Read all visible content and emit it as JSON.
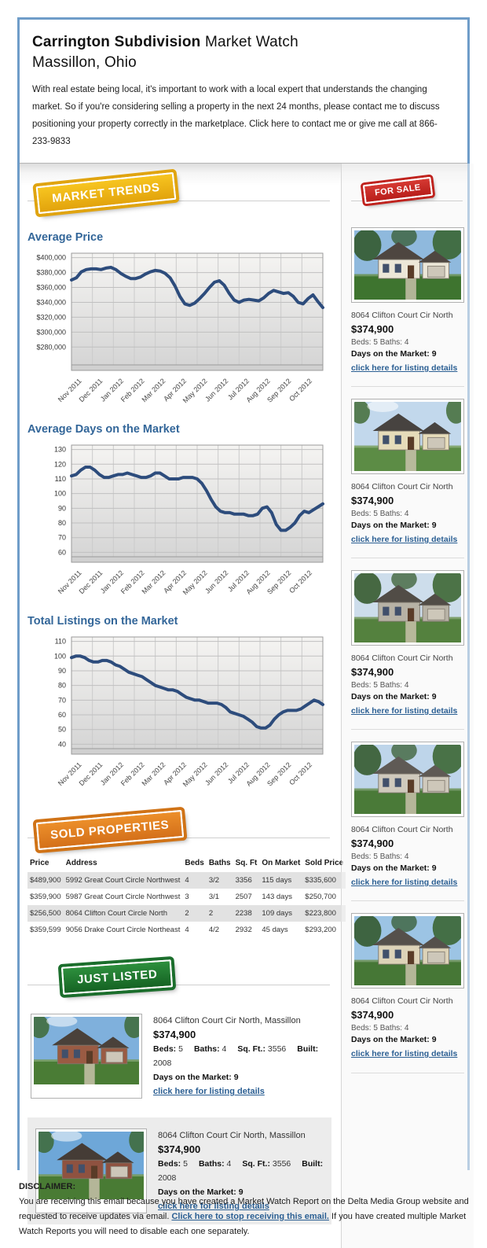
{
  "header": {
    "title_bold": "Carrington Subdivision",
    "title_rest": "Market Watch",
    "subtitle": "Massillon, Ohio",
    "intro": "With real estate being local, it's important to work with a local expert that understands the changing market. So if you're considering selling a property in the next 24 months, please contact me to discuss positioning your property correctly in the marketplace. Click here to contact me or give me call at 866-233-9833"
  },
  "badges": {
    "market_trends": "MARKET TRENDS",
    "for_sale": "FOR SALE",
    "sold_properties": "SOLD PROPERTIES",
    "just_listed": "JUST LISTED"
  },
  "colors": {
    "email_border": "#6f9dc9",
    "heading_blue": "#336699",
    "chart_line": "#2d4c7c",
    "badge_yellow": "#e8ab10",
    "badge_red": "#c0231e",
    "badge_orange": "#d4701a",
    "badge_green": "#1b6e2c",
    "link_blue": "#2b5f93"
  },
  "chart_data": [
    {
      "type": "line",
      "title": "Average Price",
      "xlabel": "",
      "ylabel": "",
      "legend": "none",
      "grid": true,
      "x": [
        "Nov 2011",
        "Dec 2011",
        "Jan 2012",
        "Feb 2012",
        "Mar 2012",
        "Apr 2012",
        "May 2012",
        "Jun 2012",
        "Jul 2012",
        "Aug 2012",
        "Sep 2012",
        "Oct 2012"
      ],
      "ylim": [
        256000,
        406000
      ],
      "ytick_values": [
        280000,
        300000,
        320000,
        340000,
        360000,
        380000,
        400000
      ],
      "ytick_labels": [
        "$280,000",
        "$300,000",
        "$320,000",
        "$340,000",
        "$360,000",
        "$380,000",
        "$400,000"
      ],
      "line_color": "#2d4c7c",
      "values": [
        370000,
        373000,
        381000,
        384000,
        385000,
        385000,
        384000,
        386000,
        387000,
        384000,
        379000,
        375000,
        372000,
        372000,
        374000,
        378000,
        381000,
        383000,
        382000,
        379000,
        373000,
        362000,
        348000,
        338000,
        336000,
        339000,
        345000,
        352000,
        360000,
        367000,
        369000,
        363000,
        352000,
        343000,
        340000,
        343000,
        344000,
        343000,
        342000,
        346000,
        352000,
        356000,
        354000,
        352000,
        353000,
        348000,
        340000,
        338000,
        345000,
        350000,
        341000,
        333000
      ]
    },
    {
      "type": "line",
      "title": "Average Days on the Market",
      "xlabel": "",
      "ylabel": "",
      "legend": "none",
      "grid": true,
      "x": [
        "Nov 2011",
        "Dec 2011",
        "Jan 2012",
        "Feb 2012",
        "Mar 2012",
        "Apr 2012",
        "May 2012",
        "Jun 2012",
        "Jul 2012",
        "Aug 2012",
        "Sep 2012",
        "Oct 2012"
      ],
      "ylim": [
        57,
        133
      ],
      "ytick_values": [
        60,
        70,
        80,
        90,
        100,
        110,
        120,
        130
      ],
      "ytick_labels": [
        "60",
        "70",
        "80",
        "90",
        "100",
        "110",
        "120",
        "130"
      ],
      "line_color": "#2d4c7c",
      "values": [
        112,
        113,
        116,
        118,
        118,
        116,
        113,
        111,
        111,
        112,
        113,
        113,
        114,
        113,
        112,
        111,
        111,
        112,
        114,
        114,
        112,
        110,
        110,
        110,
        111,
        111,
        111,
        110,
        107,
        102,
        96,
        91,
        88,
        87,
        87,
        86,
        86,
        86,
        85,
        85,
        86,
        90,
        91,
        87,
        79,
        75,
        75,
        77,
        80,
        85,
        88,
        87,
        89,
        91,
        93
      ]
    },
    {
      "type": "line",
      "title": "Total Listings on the Market",
      "xlabel": "",
      "ylabel": "",
      "legend": "none",
      "grid": true,
      "x": [
        "Nov 2011",
        "Dec 2011",
        "Jan 2012",
        "Feb 2012",
        "Mar 2012",
        "Apr 2012",
        "May 2012",
        "Jun 2012",
        "Jul 2012",
        "Aug 2012",
        "Sep 2012",
        "Oct 2012"
      ],
      "ylim": [
        37,
        113
      ],
      "ytick_values": [
        40,
        50,
        60,
        70,
        80,
        90,
        100,
        110
      ],
      "ytick_labels": [
        "40",
        "50",
        "60",
        "70",
        "80",
        "90",
        "100",
        "110"
      ],
      "line_color": "#2d4c7c",
      "values": [
        99,
        100,
        100,
        99,
        97,
        96,
        96,
        97,
        97,
        96,
        94,
        93,
        91,
        89,
        88,
        87,
        86,
        84,
        82,
        80,
        79,
        78,
        77,
        77,
        76,
        74,
        72,
        71,
        70,
        70,
        69,
        68,
        68,
        68,
        67,
        65,
        62,
        61,
        60,
        59,
        57,
        55,
        52,
        51,
        51,
        53,
        57,
        60,
        62,
        63,
        63,
        63,
        64,
        66,
        68,
        70,
        69,
        67
      ]
    }
  ],
  "sold_table": {
    "columns": [
      "Price",
      "Address",
      "Beds",
      "Baths",
      "Sq. Ft",
      "On Market",
      "Sold Price"
    ],
    "rows": [
      [
        "$489,900",
        "5992 Great Court Circle Northwest",
        "4",
        "3/2",
        "3356",
        "115 days",
        "$335,600"
      ],
      [
        "$359,900",
        "5987 Great Court Circle Northwest",
        "3",
        "3/1",
        "2507",
        "143 days",
        "$250,700"
      ],
      [
        "$256,500",
        "8064 Clifton Court Circle North",
        "2",
        "2",
        "2238",
        "109 days",
        "$223,800"
      ],
      [
        "$359,599",
        "9056 Drake Court Circle Northeast",
        "4",
        "4/2",
        "2932",
        "45 days",
        "$293,200"
      ]
    ]
  },
  "labels": {
    "beds": "Beds:",
    "baths": "Baths:",
    "sqft": "Sq. Ft.:",
    "built": "Built:",
    "days": "Days on the Market:",
    "link": "click here for listing details"
  },
  "for_sale": {
    "items": [
      {
        "address": "8064 Clifton Court Cir North",
        "price": "$374,900",
        "beds": "5",
        "baths": "4",
        "days": "9"
      },
      {
        "address": "8064 Clifton Court Cir North",
        "price": "$374,900",
        "beds": "5",
        "baths": "4",
        "days": "9"
      },
      {
        "address": "8064 Clifton Court Cir North",
        "price": "$374,900",
        "beds": "5",
        "baths": "4",
        "days": "9"
      },
      {
        "address": "8064 Clifton Court Cir North",
        "price": "$374,900",
        "beds": "5",
        "baths": "4",
        "days": "9"
      },
      {
        "address": "8064 Clifton Court Cir North",
        "price": "$374,900",
        "beds": "5",
        "baths": "4",
        "days": "9"
      }
    ]
  },
  "just_listed": {
    "items": [
      {
        "address": "8064 Clifton Court Cir North, Massillon",
        "price": "$374,900",
        "beds": "5",
        "baths": "4",
        "sqft": "3556",
        "built": "2008",
        "days": "9"
      },
      {
        "address": "8064 Clifton Court Cir North, Massillon",
        "price": "$374,900",
        "beds": "5",
        "baths": "4",
        "sqft": "3556",
        "built": "2008",
        "days": "9"
      }
    ]
  },
  "disclaimer": {
    "title": "DISCLAIMER:",
    "text_before": "You are receiving this email because you have created a Market Watch Report on the Delta Media Group website and requested to receive updates via email. ",
    "link_text": "Click here to stop receiving this email.",
    "text_after": " If you have created multiple Market Watch Reports you will need to disable each one separately."
  }
}
